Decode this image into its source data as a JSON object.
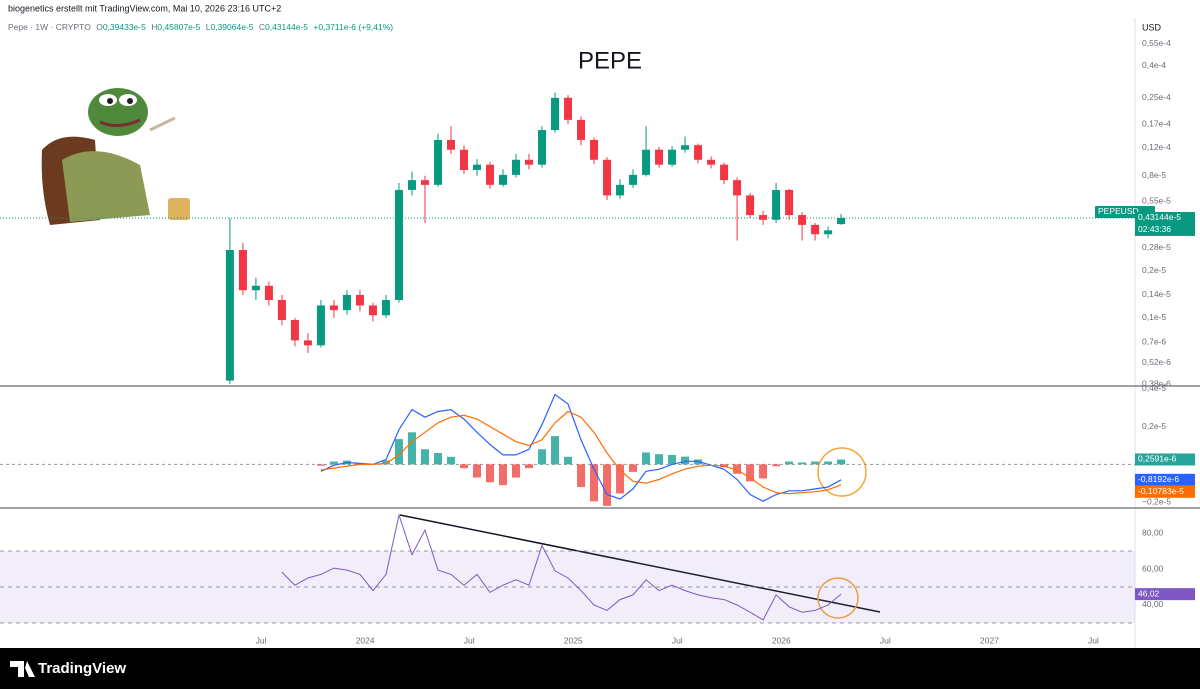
{
  "attribution": "biogenetics erstellt mit TradingView.com, Mai 10, 2026 23:16 UTC+2",
  "brand": "TradingView",
  "chart_data": [
    {
      "type": "candlestick",
      "title": "PEPE",
      "symbol_line": "Pepe · 1W · CRYPTO",
      "ohlc_labels": [
        "O",
        "H",
        "L",
        "C"
      ],
      "ohlc_values": [
        "0,39433e-5",
        "0,45807e-5",
        "0,39064e-5",
        "0,43144e-5"
      ],
      "change": "+0,3711e-6 (+9,41%)",
      "currency": "USD",
      "symbol": "PEPEUSD",
      "last_label": "0,43144e-5",
      "countdown": "02:43:36",
      "up_color": "#089981",
      "down_color": "#f23645",
      "log": true,
      "grid": false,
      "x": [
        2023.35,
        2023.4125,
        2023.475,
        2023.5375,
        2023.6,
        2023.6625,
        2023.725,
        2023.7875,
        2023.85,
        2023.9125,
        2023.975,
        2024.0375,
        2024.1,
        2024.1625,
        2024.225,
        2024.2875,
        2024.35,
        2024.4125,
        2024.475,
        2024.5375,
        2024.6,
        2024.6625,
        2024.725,
        2024.7875,
        2024.85,
        2024.9125,
        2024.975,
        2025.0375,
        2025.1,
        2025.1625,
        2025.225,
        2025.2875,
        2025.35,
        2025.4125,
        2025.475,
        2025.5375,
        2025.6,
        2025.6625,
        2025.725,
        2025.7875,
        2025.85,
        2025.9125,
        2025.975,
        2026.0375,
        2026.1,
        2026.1625,
        2026.225,
        2026.2875
      ],
      "open": [
        4e-07,
        2.7e-06,
        1.5e-06,
        1.6e-06,
        1.3e-06,
        9.7e-07,
        7.2e-07,
        6.7e-07,
        1.2e-06,
        1.12e-06,
        1.4e-06,
        1.2e-06,
        1.04e-06,
        1.3e-06,
        6.5e-06,
        7.5e-06,
        7e-06,
        1.35e-05,
        1.17e-05,
        8.7e-06,
        9.4e-06,
        7e-06,
        8.1e-06,
        1.01e-05,
        9.4e-06,
        1.56e-05,
        2.5e-05,
        1.81e-05,
        1.35e-05,
        1.01e-05,
        6e-06,
        7e-06,
        8.1e-06,
        1.17e-05,
        9.4e-06,
        1.17e-05,
        1.25e-05,
        1.01e-05,
        9.4e-06,
        7.5e-06,
        6e-06,
        4.5e-06,
        4.2e-06,
        6.5e-06,
        4.5e-06,
        3.9e-06,
        3.4e-06,
        3.9433e-06
      ],
      "high": [
        4.3e-06,
        3e-06,
        1.8e-06,
        1.7e-06,
        1.4e-06,
        1e-06,
        8e-07,
        1.3e-06,
        1.3e-06,
        1.5e-06,
        1.5e-06,
        1.25e-06,
        1.4e-06,
        7.2e-06,
        8.5e-06,
        8e-06,
        1.48e-05,
        1.65e-05,
        1.25e-05,
        1.02e-05,
        9.8e-06,
        8.8e-06,
        1.1e-05,
        1.1e-05,
        1.65e-05,
        2.7e-05,
        2.6e-05,
        1.9e-05,
        1.4e-05,
        1.05e-05,
        7.6e-06,
        8.8e-06,
        1.65e-05,
        1.22e-05,
        1.23e-05,
        1.42e-05,
        1.28e-05,
        1.06e-05,
        9.7e-06,
        7.8e-06,
        6.2e-06,
        4.8e-06,
        7.2e-06,
        6.6e-06,
        4.7e-06,
        4e-06,
        3.8e-06,
        4.5807e-06
      ],
      "low": [
        3.8e-07,
        1.4e-06,
        1.3e-06,
        1.2e-06,
        9e-07,
        6.6e-07,
        6e-07,
        6.5e-07,
        1e-06,
        1.05e-06,
        1.1e-06,
        9.5e-07,
        1e-06,
        1.25e-06,
        6e-06,
        4e-06,
        6.8e-06,
        1.1e-05,
        8.2e-06,
        8e-06,
        6.6e-06,
        6.8e-06,
        7.8e-06,
        8.8e-06,
        9e-06,
        1.5e-05,
        1.7e-05,
        1.25e-05,
        9.5e-06,
        5.6e-06,
        5.7e-06,
        6.7e-06,
        7.9e-06,
        9e-06,
        9.1e-06,
        1.12e-05,
        9.6e-06,
        8.9e-06,
        7.1e-06,
        3.1e-06,
        4.3e-06,
        3.9e-06,
        4e-06,
        4.2e-06,
        3.1e-06,
        3.1e-06,
        3.2e-06,
        3.9064e-06
      ],
      "close": [
        2.7e-06,
        1.5e-06,
        1.6e-06,
        1.3e-06,
        9.7e-07,
        7.2e-07,
        6.7e-07,
        1.2e-06,
        1.12e-06,
        1.4e-06,
        1.2e-06,
        1.04e-06,
        1.3e-06,
        6.5e-06,
        7.5e-06,
        7e-06,
        1.35e-05,
        1.17e-05,
        8.7e-06,
        9.4e-06,
        7e-06,
        8.1e-06,
        1.01e-05,
        9.4e-06,
        1.56e-05,
        2.5e-05,
        1.81e-05,
        1.35e-05,
        1.01e-05,
        6e-06,
        7e-06,
        8.1e-06,
        1.17e-05,
        9.4e-06,
        1.17e-05,
        1.25e-05,
        1.01e-05,
        9.4e-06,
        7.5e-06,
        6e-06,
        4.5e-06,
        4.2e-06,
        6.5e-06,
        4.5e-06,
        3.9e-06,
        3.4e-06,
        3.6e-06,
        4.3144e-06
      ],
      "xlim": [
        2022.245,
        2027.7
      ],
      "xticks": [
        {
          "value": 2023.5,
          "label": "Jul"
        },
        2024,
        {
          "value": 2024.5,
          "label": "Jul"
        },
        2025,
        {
          "value": 2025.5,
          "label": "Jul"
        },
        2026,
        {
          "value": 2026.5,
          "label": "Jul"
        },
        2027,
        {
          "value": 2027.5,
          "label": "Jul"
        }
      ],
      "ylim": [
        3.75e-07,
        8.03e-05
      ],
      "yticks": [
        {
          "value": 5.5e-05,
          "label": "0,55e-4"
        },
        {
          "value": 4e-05,
          "label": "0,4e-4"
        },
        {
          "value": 2.5e-05,
          "label": "0,25e-4"
        },
        {
          "value": 1.7e-05,
          "label": "0,17e-4"
        },
        {
          "value": 1.2e-05,
          "label": "0,12e-4"
        },
        {
          "value": 8e-06,
          "label": "0,8e-5"
        },
        {
          "value": 5.5e-06,
          "label": "0,55e-5"
        },
        {
          "value": 2.8e-06,
          "label": "0,28e-5"
        },
        {
          "value": 2e-06,
          "label": "0,2e-5"
        },
        {
          "value": 1.4e-06,
          "label": "0,14e-5"
        },
        {
          "value": 1e-06,
          "label": "0,1e-5"
        },
        {
          "value": 7e-07,
          "label": "0,7e-6"
        },
        {
          "value": 5.2e-07,
          "label": "0,52e-6"
        },
        {
          "value": 3.8e-07,
          "label": "0,38e-6"
        }
      ]
    },
    {
      "type": "macd",
      "ylim": [
        -2.26e-06,
        4.1e-06
      ],
      "yticks": [
        {
          "value": 4e-06,
          "label": "0,4e-5"
        },
        {
          "value": 2e-06,
          "label": "0,2e-5"
        },
        {
          "value": -2e-06,
          "label": "−0,2e-5"
        }
      ],
      "series": [
        {
          "kind": "histogram",
          "color": "#26a69a",
          "negative_color": "#ef5350",
          "last_label": "0,2591e-6",
          "values": [
            null,
            null,
            null,
            null,
            null,
            null,
            null,
            -7e-08,
            1.5e-07,
            2e-07,
            5e-08,
            0,
            2.1e-07,
            1.34e-06,
            1.7e-06,
            8e-07,
            6e-07,
            4e-07,
            -2e-07,
            -7e-07,
            -9.5e-07,
            -1.1e-06,
            -7e-07,
            -2e-07,
            8e-07,
            1.5e-06,
            4e-07,
            -1.2e-06,
            -1.96e-06,
            -2.2e-06,
            -1.54e-06,
            -4e-07,
            6.3e-07,
            5.4e-07,
            5e-07,
            4.1e-07,
            2.6e-07,
            0,
            -1.6e-07,
            -5e-07,
            -9e-07,
            -7.5e-07,
            -1e-07,
            1.5e-07,
            1e-07,
            1.5e-07,
            1.5e-07,
            2.591e-07
          ]
        },
        {
          "kind": "line",
          "color": "#2962ff",
          "last_label": "-0,8192e-6",
          "values": [
            null,
            null,
            null,
            null,
            null,
            null,
            null,
            -3.7e-07,
            -5e-08,
            1e-07,
            5e-08,
            0,
            2.6e-07,
            1.84e-06,
            2.9e-06,
            2.5e-06,
            2.8e-06,
            2.9e-06,
            2.4e-06,
            1.7e-06,
            1.05e-06,
            5e-07,
            5e-07,
            8e-07,
            2.1e-06,
            3.7e-06,
            3.2e-06,
            1.3e-06,
            -2.6e-07,
            -1.6e-06,
            -1.84e-06,
            -1.3e-06,
            -3.7e-07,
            -2.6e-07,
            0,
            1.6e-07,
            1.6e-07,
            -5e-08,
            -2.6e-07,
            -8e-07,
            -1.6e-06,
            -1.95e-06,
            -1.6e-06,
            -1.4e-06,
            -1.4e-06,
            -1.3e-06,
            -1.2e-06,
            -8.192e-07
          ]
        },
        {
          "kind": "line",
          "color": "#ff6d00",
          "last_label": "-0,10783e-5",
          "values": [
            null,
            null,
            null,
            null,
            null,
            null,
            null,
            -3e-07,
            -2e-07,
            -1e-07,
            0,
            0,
            5e-08,
            5e-07,
            1.2e-06,
            1.7e-06,
            2.2e-06,
            2.5e-06,
            2.6e-06,
            2.4e-06,
            2e-06,
            1.6e-06,
            1.2e-06,
            1e-06,
            1.3e-06,
            2.2e-06,
            2.8e-06,
            2.5e-06,
            1.7e-06,
            6e-07,
            -3e-07,
            -9e-07,
            -1e-06,
            -8e-07,
            -5e-07,
            -2.5e-07,
            -1e-07,
            -5e-08,
            -1e-07,
            -3e-07,
            -7e-07,
            -1.2e-06,
            -1.5e-06,
            -1.55e-06,
            -1.5e-06,
            -1.45e-06,
            -1.35e-06,
            -1.0783e-06
          ]
        }
      ]
    },
    {
      "type": "line",
      "ylim": [
        27.2,
        92.8
      ],
      "yticks": [
        {
          "value": 80,
          "label": "80,00"
        },
        {
          "value": 60,
          "label": "60,00"
        },
        {
          "value": 40,
          "label": "40,00"
        }
      ],
      "band": [
        30,
        70
      ],
      "midline": 50,
      "series": [
        {
          "color": "#7e57c2",
          "last_label": "46,02",
          "values": [
            null,
            null,
            null,
            null,
            58.3,
            51,
            55,
            57,
            60.5,
            59.4,
            57,
            48,
            57,
            90,
            68,
            81.7,
            59.4,
            57,
            51,
            57,
            47,
            51,
            54,
            51,
            73,
            59,
            55,
            48,
            40,
            37,
            43,
            45.6,
            54,
            48,
            51,
            48,
            45.6,
            44,
            43,
            40,
            36,
            31.7,
            45.6,
            39,
            36,
            37,
            40,
            46.02
          ]
        }
      ]
    }
  ]
}
